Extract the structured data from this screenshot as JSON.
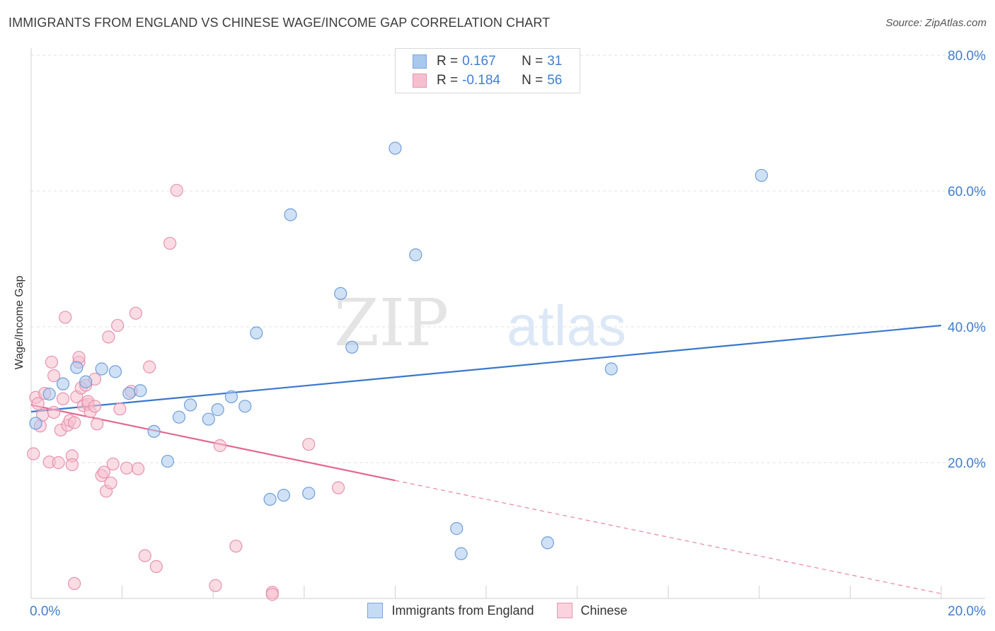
{
  "header": {
    "title": "IMMIGRANTS FROM ENGLAND VS CHINESE WAGE/INCOME GAP CORRELATION CHART",
    "source": "Source: ZipAtlas.com"
  },
  "watermark": {
    "zip": "ZIP",
    "atlas": "atlas"
  },
  "stats": [
    {
      "r_label": "R =",
      "r_value": "0.167",
      "n_label": "N =",
      "n_value": "31",
      "color": "#a9c8ee",
      "border": "#7ba6dc"
    },
    {
      "r_label": "R =",
      "r_value": "-0.184",
      "n_label": "N =",
      "n_value": "56",
      "color": "#f6bfd0",
      "border": "#e794b0"
    }
  ],
  "legend": [
    {
      "label": "Immigrants from England",
      "color": "#c5dbf5",
      "border": "#7ba6dc"
    },
    {
      "label": "Chinese",
      "color": "#fad3df",
      "border": "#e794b0"
    }
  ],
  "chart_data": {
    "type": "scatter",
    "ylabel": "Wage/Income Gap",
    "xlim": [
      0,
      20
    ],
    "ylim": [
      0,
      80
    ],
    "x_tick_labels": [
      {
        "value": 0,
        "label": "0.0%"
      },
      {
        "value": 20,
        "label": "20.0%"
      }
    ],
    "y_tick_labels": [
      {
        "value": 20,
        "label": "20.0%"
      },
      {
        "value": 40,
        "label": "40.0%"
      },
      {
        "value": 60,
        "label": "60.0%"
      },
      {
        "value": 80,
        "label": "80.0%"
      }
    ],
    "grid": true,
    "series": [
      {
        "name": "Immigrants from England",
        "color": "#a9c8ee",
        "stroke": "#6f9fd8",
        "trend_color": "#3a78cc",
        "trend": {
          "x0": 0,
          "y0": 27.5,
          "x1": 20,
          "y1": 40.2,
          "solid_until": 20
        },
        "points": [
          [
            0.1,
            25.8
          ],
          [
            0.4,
            30.1
          ],
          [
            0.7,
            31.6
          ],
          [
            1.0,
            34.0
          ],
          [
            1.2,
            31.9
          ],
          [
            1.55,
            33.8
          ],
          [
            1.85,
            33.4
          ],
          [
            2.15,
            30.2
          ],
          [
            2.4,
            30.6
          ],
          [
            2.7,
            24.6
          ],
          [
            3.0,
            20.2
          ],
          [
            3.25,
            26.7
          ],
          [
            3.5,
            28.5
          ],
          [
            3.9,
            26.4
          ],
          [
            4.1,
            27.8
          ],
          [
            4.4,
            29.7
          ],
          [
            4.7,
            28.3
          ],
          [
            4.95,
            39.1
          ],
          [
            5.25,
            14.6
          ],
          [
            5.55,
            15.2
          ],
          [
            5.7,
            56.5
          ],
          [
            6.1,
            15.5
          ],
          [
            6.8,
            44.9
          ],
          [
            7.05,
            37.0
          ],
          [
            8.0,
            66.3
          ],
          [
            8.45,
            50.6
          ],
          [
            9.35,
            10.3
          ],
          [
            9.45,
            6.6
          ],
          [
            11.35,
            8.2
          ],
          [
            12.75,
            33.8
          ],
          [
            16.05,
            62.3
          ]
        ]
      },
      {
        "name": "Chinese",
        "color": "#f6bfd0",
        "stroke": "#e892ad",
        "trend_color": "#e3668f",
        "trend": {
          "x0": 0,
          "y0": 28.5,
          "x1": 20,
          "y1": 0.7,
          "solid_until": 8.0
        },
        "points": [
          [
            0.05,
            21.3
          ],
          [
            0.1,
            29.6
          ],
          [
            0.15,
            28.7
          ],
          [
            0.2,
            25.4
          ],
          [
            0.25,
            27.0
          ],
          [
            0.3,
            30.2
          ],
          [
            0.4,
            20.1
          ],
          [
            0.45,
            34.8
          ],
          [
            0.5,
            27.4
          ],
          [
            0.5,
            32.8
          ],
          [
            0.6,
            20.0
          ],
          [
            0.65,
            24.8
          ],
          [
            0.7,
            29.4
          ],
          [
            0.75,
            41.4
          ],
          [
            0.8,
            25.5
          ],
          [
            0.85,
            26.2
          ],
          [
            0.9,
            21.0
          ],
          [
            0.9,
            19.7
          ],
          [
            0.95,
            25.9
          ],
          [
            1.0,
            29.7
          ],
          [
            0.95,
            2.2
          ],
          [
            1.05,
            34.8
          ],
          [
            1.05,
            35.5
          ],
          [
            1.1,
            31.0
          ],
          [
            1.15,
            28.4
          ],
          [
            1.2,
            31.4
          ],
          [
            1.25,
            28.6
          ],
          [
            1.25,
            29.0
          ],
          [
            1.3,
            27.5
          ],
          [
            1.4,
            28.3
          ],
          [
            1.4,
            32.3
          ],
          [
            1.45,
            25.7
          ],
          [
            1.55,
            18.1
          ],
          [
            1.6,
            18.6
          ],
          [
            1.65,
            15.8
          ],
          [
            1.7,
            38.5
          ],
          [
            1.75,
            17.0
          ],
          [
            1.8,
            19.8
          ],
          [
            1.9,
            40.2
          ],
          [
            1.95,
            27.9
          ],
          [
            2.1,
            19.2
          ],
          [
            2.2,
            30.5
          ],
          [
            2.3,
            42.0
          ],
          [
            2.35,
            19.1
          ],
          [
            2.5,
            6.3
          ],
          [
            2.6,
            34.1
          ],
          [
            2.75,
            4.7
          ],
          [
            3.05,
            52.3
          ],
          [
            3.2,
            60.1
          ],
          [
            4.05,
            1.9
          ],
          [
            4.15,
            22.5
          ],
          [
            4.5,
            7.7
          ],
          [
            5.3,
            0.9
          ],
          [
            5.3,
            0.6
          ],
          [
            6.1,
            22.7
          ],
          [
            6.75,
            16.3
          ]
        ]
      }
    ]
  }
}
